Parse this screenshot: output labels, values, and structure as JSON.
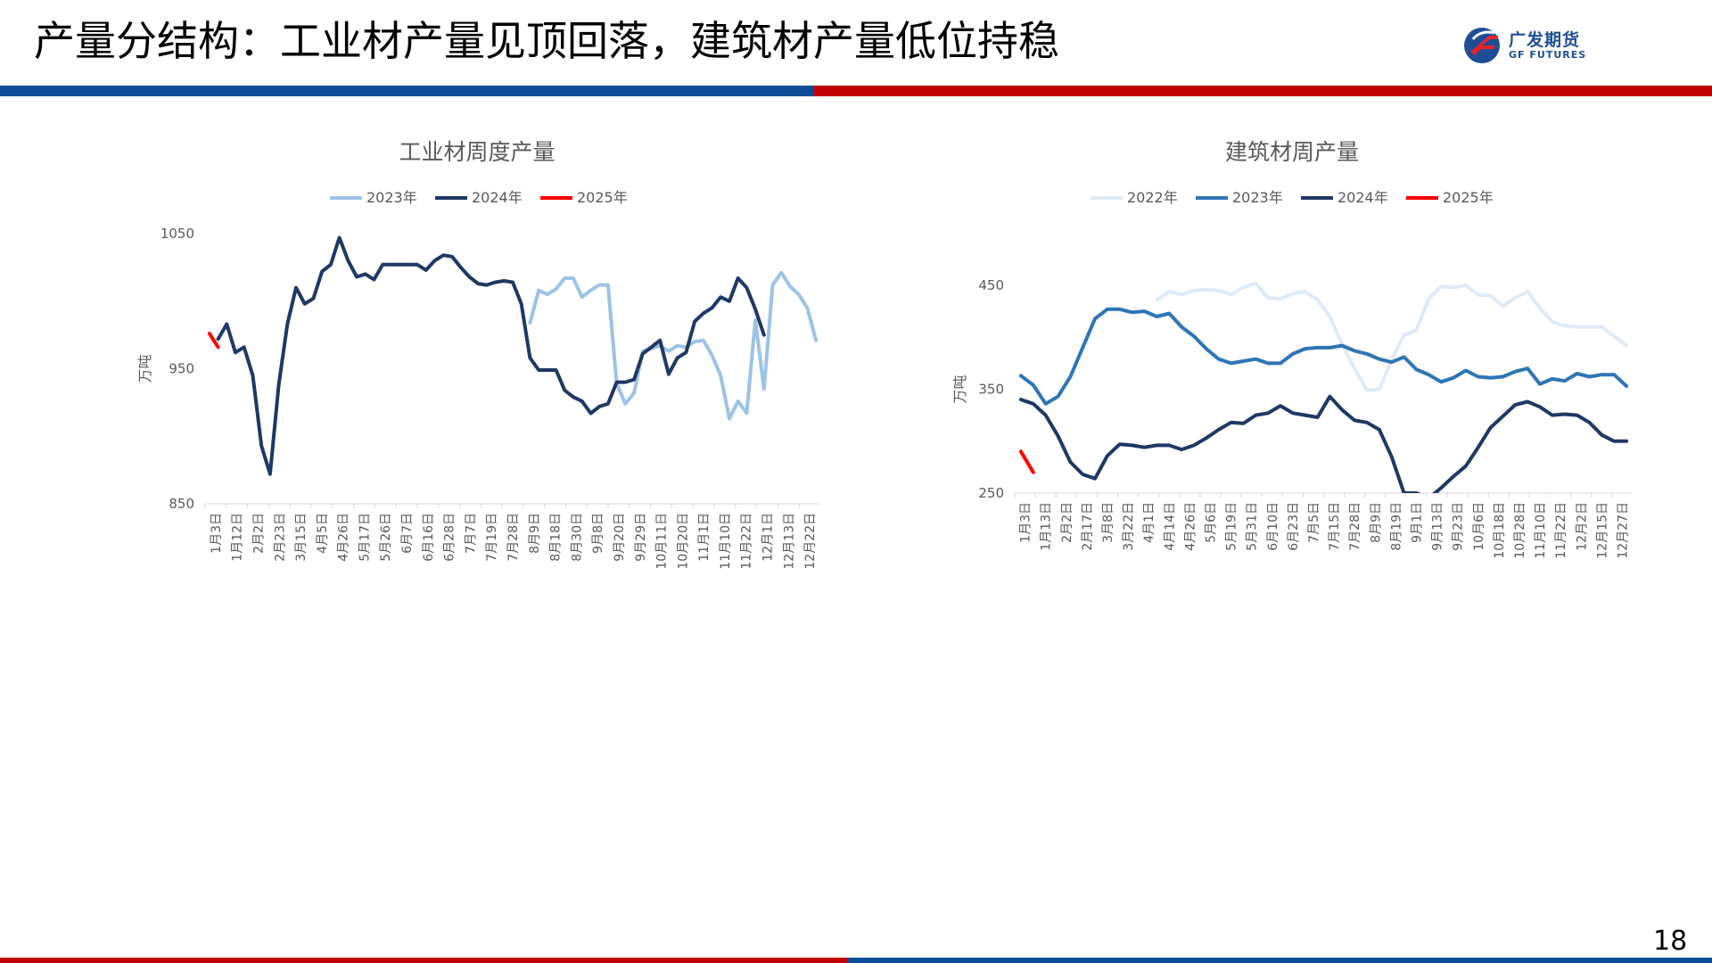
{
  "slide": {
    "title": "产量分结构：工业材产量见顶回落，建筑材产量低位持稳",
    "page_number": "18",
    "logo": {
      "name_cn": "广发期货",
      "name_en": "GF FUTURES",
      "icon": "gf-logo-icon"
    }
  },
  "colors": {
    "top_band_blue": "#0e4c97",
    "top_band_red": "#c00000"
  },
  "chart_data": [
    {
      "type": "line",
      "title": "工业材周度产量",
      "ylabel": "万吨",
      "ylim": [
        850,
        1050
      ],
      "yticks": [
        850,
        950,
        1050
      ],
      "grid": false,
      "legend_position": "top",
      "xtick_labels": [
        "1月3日",
        "1月12日",
        "2月2日",
        "2月23日",
        "3月15日",
        "4月5日",
        "4月26日",
        "5月17日",
        "5月26日",
        "6月7日",
        "6月16日",
        "6月28日",
        "7月7日",
        "7月19日",
        "7月28日",
        "8月9日",
        "8月18日",
        "8月30日",
        "9月8日",
        "9月20日",
        "9月29日",
        "10月11日",
        "10月20日",
        "11月1日",
        "11月10日",
        "11月22日",
        "12月1日",
        "12月13日",
        "12月22日"
      ],
      "series": [
        {
          "name": "2023年",
          "color": "#9dc3e6",
          "values": [
            null,
            null,
            null,
            null,
            null,
            null,
            null,
            null,
            null,
            null,
            null,
            null,
            null,
            null,
            null,
            null,
            null,
            null,
            null,
            null,
            null,
            null,
            null,
            null,
            null,
            null,
            null,
            null,
            null,
            null,
            null,
            null,
            null,
            null,
            null,
            null,
            null,
            984,
            1008,
            1005,
            1009,
            1017,
            1017,
            1003,
            1008,
            1012,
            1012,
            939,
            924,
            932,
            963,
            965,
            967,
            963,
            967,
            966,
            970,
            971,
            960,
            945,
            913,
            926,
            917,
            986,
            935,
            1012,
            1021,
            1011,
            1005,
            995,
            971
          ]
        },
        {
          "name": "2024年",
          "color": "#1f3864",
          "values": [
            null,
            972,
            983,
            962,
            966,
            945,
            893,
            872,
            938,
            983,
            1010,
            998,
            1002,
            1022,
            1027,
            1047,
            1030,
            1018,
            1020,
            1016,
            1027,
            1027,
            1027,
            1027,
            1027,
            1023,
            1030,
            1034,
            1033,
            1025,
            1018,
            1013,
            1012,
            1014,
            1015,
            1014,
            998,
            958,
            949,
            949,
            949,
            934,
            929,
            926,
            917,
            922,
            924,
            940,
            940,
            942,
            961,
            966,
            971,
            946,
            958,
            962,
            985,
            991,
            995,
            1003,
            1000,
            1017,
            1010,
            994,
            975,
            null
          ]
        },
        {
          "name": "2025年",
          "color": "#ff0000",
          "values": [
            976,
            966,
            null,
            null,
            null,
            null,
            null,
            null,
            null,
            null,
            null,
            null,
            null,
            null,
            null,
            null,
            null,
            null,
            null,
            null,
            null,
            null,
            null,
            null,
            null,
            null,
            null,
            null,
            null,
            null,
            null,
            null,
            null,
            null,
            null,
            null,
            null,
            null,
            null,
            null,
            null,
            null,
            null,
            null,
            null,
            null,
            null,
            null,
            null,
            null,
            null,
            null,
            null,
            null,
            null,
            null,
            null,
            null,
            null,
            null,
            null,
            null,
            null,
            null,
            null,
            null
          ]
        }
      ]
    },
    {
      "type": "line",
      "title": "建筑材周产量",
      "ylabel": "万吨",
      "ylim": [
        250,
        450
      ],
      "yticks": [
        250,
        350,
        450
      ],
      "grid": false,
      "legend_position": "top",
      "xtick_labels": [
        "1月3日",
        "1月13日",
        "2月2日",
        "2月17日",
        "3月8日",
        "3月22日",
        "4月1日",
        "4月14日",
        "4月26日",
        "5月6日",
        "5月19日",
        "5月31日",
        "6月10日",
        "6月23日",
        "7月5日",
        "7月15日",
        "7月28日",
        "8月9日",
        "8月19日",
        "9月1日",
        "9月13日",
        "9月23日",
        "10月6日",
        "10月18日",
        "10月28日",
        "11月10日",
        "11月22日",
        "12月2日",
        "12月15日",
        "12月27日"
      ],
      "series": [
        {
          "name": "2022年",
          "color": "#deebf7",
          "values": [
            null,
            null,
            null,
            null,
            null,
            null,
            null,
            null,
            null,
            null,
            null,
            436,
            444,
            441,
            445,
            446,
            445,
            441,
            448,
            452,
            438,
            437,
            442,
            444,
            436,
            420,
            393,
            370,
            349,
            350,
            378,
            402,
            407,
            437,
            449,
            448,
            450,
            441,
            440,
            430,
            438,
            444,
            428,
            415,
            411,
            410,
            410,
            410,
            401,
            392
          ]
        },
        {
          "name": "2023年",
          "color": "#2e75b6",
          "values": [
            363,
            354,
            336,
            343,
            362,
            390,
            418,
            427,
            427,
            424,
            425,
            420,
            423,
            410,
            401,
            389,
            379,
            375,
            377,
            379,
            375,
            375,
            384,
            389,
            390,
            390,
            392,
            387,
            384,
            379,
            376,
            381,
            369,
            364,
            357,
            361,
            368,
            362,
            361,
            362,
            367,
            370,
            355,
            360,
            358,
            365,
            362,
            364,
            364,
            353
          ]
        },
        {
          "name": "2024年",
          "color": "#1f3864",
          "values": [
            340,
            336,
            325,
            305,
            280,
            268,
            264,
            286,
            297,
            296,
            294,
            296,
            296,
            292,
            296,
            303,
            311,
            318,
            317,
            325,
            327,
            334,
            327,
            325,
            323,
            343,
            330,
            320,
            318,
            311,
            285,
            250,
            250,
            245,
            255,
            266,
            276,
            294,
            313,
            324,
            335,
            338,
            333,
            325,
            326,
            325,
            318,
            306,
            300,
            300
          ]
        },
        {
          "name": "2025年",
          "color": "#ff0000",
          "values": [
            290,
            270,
            null,
            null,
            null,
            null,
            null,
            null,
            null,
            null,
            null,
            null,
            null,
            null,
            null,
            null,
            null,
            null,
            null,
            null,
            null,
            null,
            null,
            null,
            null,
            null,
            null,
            null,
            null,
            null,
            null,
            null,
            null,
            null,
            null,
            null,
            null,
            null,
            null,
            null,
            null,
            null,
            null,
            null,
            null,
            null,
            null,
            null,
            null,
            null
          ]
        }
      ]
    }
  ]
}
